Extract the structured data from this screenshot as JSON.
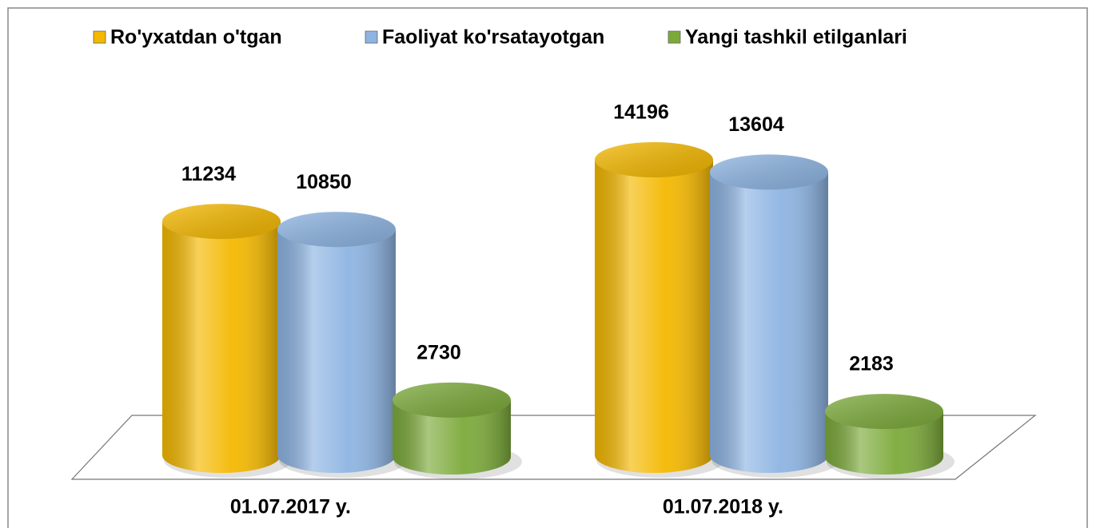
{
  "chart_data": {
    "type": "bar",
    "categories": [
      "01.07.2017 y.",
      "01.07.2018 y."
    ],
    "series": [
      {
        "name": "Ro'yxatdan o'tgan",
        "color": "#f4b800",
        "values": [
          11234,
          14196
        ]
      },
      {
        "name": "Faoliyat ko'rsatayotgan",
        "color": "#8db4e2",
        "values": [
          10850,
          13604
        ]
      },
      {
        "name": "Yangi tashkil etilganlari",
        "color": "#7caa3a",
        "values": [
          2730,
          2183
        ]
      }
    ]
  }
}
